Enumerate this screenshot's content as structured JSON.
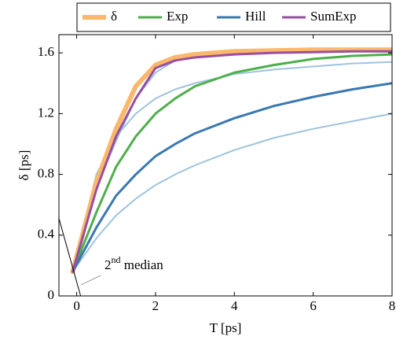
{
  "chart_data": {
    "type": "line",
    "x_label": "T [ps]",
    "y_label": "δ [ps]",
    "x": [
      -0.1,
      0.5,
      1,
      1.5,
      2,
      2.5,
      3,
      4,
      5,
      6,
      7,
      8
    ],
    "xlim": [
      -0.45,
      8
    ],
    "ylim": [
      0,
      1.72
    ],
    "xticks": [
      0,
      2,
      4,
      6,
      8
    ],
    "yticks": [
      0,
      0.4,
      0.8,
      1.2,
      1.6
    ],
    "annotation": {
      "base": "2",
      "sup": "nd",
      "rest": " median"
    },
    "series": [
      {
        "color": "#9ec3de",
        "width": 2,
        "values": [
          0.16,
          0.8,
          1.05,
          1.2,
          1.3,
          1.36,
          1.4,
          1.46,
          1.49,
          1.51,
          1.53,
          1.54
        ]
      },
      {
        "color": "#9ec3de",
        "width": 2,
        "values": [
          0.16,
          0.38,
          0.53,
          0.64,
          0.73,
          0.8,
          0.86,
          0.96,
          1.04,
          1.1,
          1.15,
          1.2
        ]
      },
      {
        "color": "#9ec3de",
        "width": 2,
        "values": [
          0.16,
          0.72,
          1.02,
          1.3,
          1.47,
          1.55,
          1.58,
          1.6,
          1.61,
          1.615,
          1.62,
          1.62
        ]
      },
      {
        "name": "δ",
        "color": "#fbb86a",
        "width": 6,
        "values": [
          0.16,
          0.75,
          1.1,
          1.38,
          1.52,
          1.57,
          1.59,
          1.61,
          1.615,
          1.62,
          1.62,
          1.62
        ]
      },
      {
        "name": "Exp",
        "color": "#4daf4a",
        "width": 3,
        "values": [
          0.16,
          0.55,
          0.85,
          1.05,
          1.2,
          1.3,
          1.38,
          1.47,
          1.52,
          1.56,
          1.58,
          1.59
        ]
      },
      {
        "name": "Hill",
        "color": "#3a78b0",
        "width": 3,
        "values": [
          0.16,
          0.45,
          0.66,
          0.8,
          0.92,
          1.0,
          1.07,
          1.17,
          1.25,
          1.31,
          1.36,
          1.4
        ]
      },
      {
        "name": "SumExp",
        "color": "#984ea3",
        "width": 3,
        "values": [
          0.16,
          0.7,
          1.05,
          1.3,
          1.5,
          1.55,
          1.57,
          1.59,
          1.6,
          1.605,
          1.61,
          1.61
        ]
      },
      {
        "color": "#000000",
        "width": 1,
        "x": [
          -0.45,
          0.1
        ],
        "values": [
          0.51,
          0
        ]
      }
    ]
  }
}
